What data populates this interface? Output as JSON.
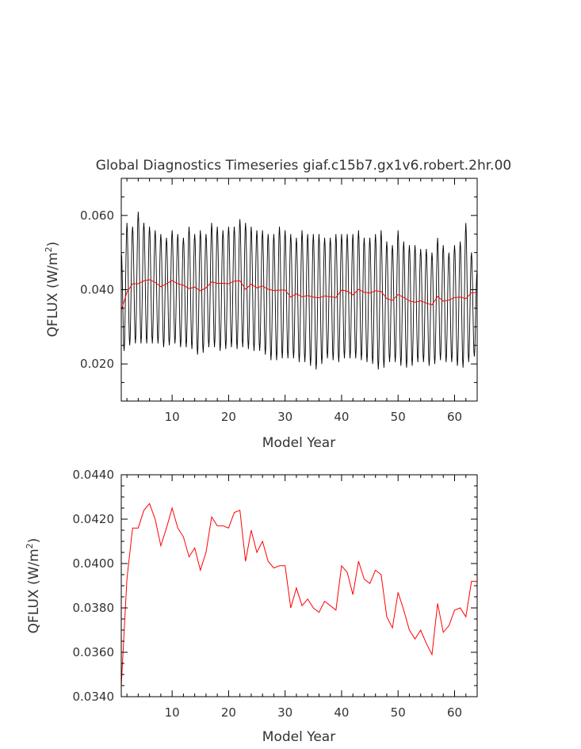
{
  "title": "Global Diagnostics Timeseries giaf.c15b7.gx1v6.robert.2hr.00",
  "colors": {
    "monthly_line": "#000000",
    "annual_line": "#ff0000",
    "axes": "#000000",
    "text": "#333333"
  },
  "chart_data": [
    {
      "type": "line",
      "title": "Global Diagnostics Timeseries giaf.c15b7.gx1v6.robert.2hr.00",
      "xlabel": "Model Year",
      "ylabel_main": "QFLUX (W/m",
      "ylabel_sup": "2",
      "ylabel_close": ")",
      "xlim": [
        1,
        64
      ],
      "ylim": [
        0.01,
        0.07
      ],
      "xticks": [
        10,
        20,
        30,
        40,
        50,
        60
      ],
      "xtick_labels": [
        "10",
        "20",
        "30",
        "40",
        "50",
        "60"
      ],
      "yticks": [
        0.02,
        0.04,
        0.06
      ],
      "ytick_labels": [
        "0.020",
        "0.040",
        "0.060"
      ],
      "grid": false,
      "series": [
        {
          "id": "monthly",
          "color": "#000000",
          "x_start": 1.0,
          "x_step": 0.08333,
          "seasonal_amplitude": 0.0105,
          "extremes_x": [
            1,
            2,
            3,
            4,
            5,
            6,
            7,
            8,
            9,
            10,
            11,
            12,
            13,
            14,
            15,
            16,
            17,
            18,
            19,
            20,
            21,
            22,
            23,
            24,
            25,
            26,
            27,
            28,
            29,
            30,
            31,
            32,
            33,
            34,
            35,
            36,
            37,
            38,
            39,
            40,
            41,
            42,
            43,
            44,
            45,
            46,
            47,
            48,
            49,
            50,
            51,
            52,
            53,
            54,
            55,
            56,
            57,
            58,
            59,
            60,
            61,
            62,
            63,
            64
          ],
          "max": [
            0.05,
            0.058,
            0.057,
            0.061,
            0.058,
            0.057,
            0.056,
            0.055,
            0.054,
            0.056,
            0.055,
            0.054,
            0.057,
            0.055,
            0.056,
            0.055,
            0.058,
            0.057,
            0.056,
            0.057,
            0.057,
            0.059,
            0.058,
            0.057,
            0.056,
            0.056,
            0.055,
            0.055,
            0.057,
            0.056,
            0.055,
            0.054,
            0.056,
            0.055,
            0.055,
            0.055,
            0.054,
            0.054,
            0.055,
            0.055,
            0.055,
            0.055,
            0.056,
            0.054,
            0.054,
            0.055,
            0.056,
            0.053,
            0.052,
            0.056,
            0.053,
            0.052,
            0.052,
            0.051,
            0.051,
            0.05,
            0.054,
            0.052,
            0.05,
            0.052,
            0.053,
            0.058,
            0.05,
            0.045
          ],
          "min": [
            0.023,
            0.024,
            0.026,
            0.025,
            0.026,
            0.025,
            0.026,
            0.025,
            0.024,
            0.026,
            0.025,
            0.024,
            0.025,
            0.023,
            0.022,
            0.024,
            0.025,
            0.024,
            0.023,
            0.025,
            0.024,
            0.024,
            0.025,
            0.023,
            0.024,
            0.023,
            0.022,
            0.02,
            0.022,
            0.021,
            0.022,
            0.021,
            0.02,
            0.021,
            0.018,
            0.019,
            0.021,
            0.022,
            0.02,
            0.021,
            0.022,
            0.021,
            0.022,
            0.02,
            0.021,
            0.019,
            0.018,
            0.02,
            0.021,
            0.02,
            0.019,
            0.019,
            0.02,
            0.021,
            0.02,
            0.019,
            0.021,
            0.021,
            0.02,
            0.021,
            0.018,
            0.02,
            0.021,
            0.023
          ]
        },
        {
          "id": "annual",
          "color": "#ff0000",
          "x": [
            1,
            2,
            3,
            4,
            5,
            6,
            7,
            8,
            9,
            10,
            11,
            12,
            13,
            14,
            15,
            16,
            17,
            18,
            19,
            20,
            21,
            22,
            23,
            24,
            25,
            26,
            27,
            28,
            29,
            30,
            31,
            32,
            33,
            34,
            35,
            36,
            37,
            38,
            39,
            40,
            41,
            42,
            43,
            44,
            45,
            46,
            47,
            48,
            49,
            50,
            51,
            52,
            53,
            54,
            55,
            56,
            57,
            58,
            59,
            60,
            61,
            62,
            63,
            64
          ],
          "y": [
            0.0345,
            0.0393,
            0.0416,
            0.0416,
            0.0424,
            0.0427,
            0.042,
            0.0408,
            0.0416,
            0.0425,
            0.0416,
            0.0412,
            0.0403,
            0.0407,
            0.0397,
            0.0405,
            0.0421,
            0.0417,
            0.0417,
            0.0416,
            0.0423,
            0.0424,
            0.0401,
            0.0415,
            0.0405,
            0.041,
            0.0401,
            0.0398,
            0.0399,
            0.0399,
            0.038,
            0.0389,
            0.0381,
            0.0384,
            0.038,
            0.0378,
            0.0383,
            0.0381,
            0.0379,
            0.0399,
            0.0396,
            0.0386,
            0.0401,
            0.0393,
            0.0391,
            0.0397,
            0.0395,
            0.0376,
            0.0371,
            0.0387,
            0.0379,
            0.037,
            0.0366,
            0.037,
            0.0364,
            0.0359,
            0.0382,
            0.0369,
            0.0372,
            0.0379,
            0.038,
            0.0376,
            0.0392,
            0.0392
          ]
        }
      ]
    },
    {
      "type": "line",
      "xlabel": "Model Year",
      "ylabel_main": "QFLUX (W/m",
      "ylabel_sup": "2",
      "ylabel_close": ")",
      "xlim": [
        1,
        64
      ],
      "ylim": [
        0.034,
        0.044
      ],
      "xticks": [
        10,
        20,
        30,
        40,
        50,
        60
      ],
      "xtick_labels": [
        "10",
        "20",
        "30",
        "40",
        "50",
        "60"
      ],
      "yticks": [
        0.034,
        0.036,
        0.038,
        0.04,
        0.042,
        0.044
      ],
      "ytick_labels": [
        "0.0340",
        "0.0360",
        "0.0380",
        "0.0400",
        "0.0420",
        "0.0440"
      ],
      "grid": false,
      "series": [
        {
          "id": "annual",
          "color": "#ff0000",
          "x": [
            1,
            2,
            3,
            4,
            5,
            6,
            7,
            8,
            9,
            10,
            11,
            12,
            13,
            14,
            15,
            16,
            17,
            18,
            19,
            20,
            21,
            22,
            23,
            24,
            25,
            26,
            27,
            28,
            29,
            30,
            31,
            32,
            33,
            34,
            35,
            36,
            37,
            38,
            39,
            40,
            41,
            42,
            43,
            44,
            45,
            46,
            47,
            48,
            49,
            50,
            51,
            52,
            53,
            54,
            55,
            56,
            57,
            58,
            59,
            60,
            61,
            62,
            63,
            64
          ],
          "y": [
            0.0345,
            0.0393,
            0.0416,
            0.0416,
            0.0424,
            0.0427,
            0.042,
            0.0408,
            0.0416,
            0.0425,
            0.0416,
            0.0412,
            0.0403,
            0.0407,
            0.0397,
            0.0405,
            0.0421,
            0.0417,
            0.0417,
            0.0416,
            0.0423,
            0.0424,
            0.0401,
            0.0415,
            0.0405,
            0.041,
            0.0401,
            0.0398,
            0.0399,
            0.0399,
            0.038,
            0.0389,
            0.0381,
            0.0384,
            0.038,
            0.0378,
            0.0383,
            0.0381,
            0.0379,
            0.0399,
            0.0396,
            0.0386,
            0.0401,
            0.0393,
            0.0391,
            0.0397,
            0.0395,
            0.0376,
            0.0371,
            0.0387,
            0.0379,
            0.037,
            0.0366,
            0.037,
            0.0364,
            0.0359,
            0.0382,
            0.0369,
            0.0372,
            0.0379,
            0.038,
            0.0376,
            0.0392,
            0.0392
          ]
        }
      ]
    }
  ]
}
